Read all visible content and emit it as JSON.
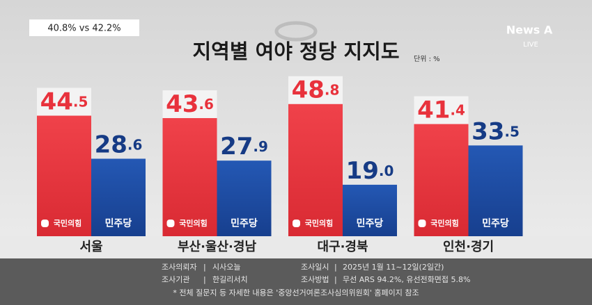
{
  "header": {
    "badge": "40.8% vs 42.2%",
    "logo": "News A",
    "live": "LIVE"
  },
  "chart_data": {
    "type": "bar",
    "title": "지역별 여야 정당 지지도",
    "unit": "단위 : %",
    "categories": [
      "서울",
      "부산·울산·경남",
      "대구·경북",
      "인천·경기"
    ],
    "series": [
      {
        "name": "국민의힘",
        "color": "#e8323c",
        "values": [
          44.5,
          43.6,
          48.8,
          41.4
        ],
        "value_labels": [
          "44.5",
          "43.6",
          "48.8",
          "41.4"
        ]
      },
      {
        "name": "민주당",
        "color": "#1c4ea6",
        "values": [
          28.6,
          27.9,
          19.0,
          33.5
        ],
        "value_labels": [
          "28.6",
          "27.9",
          "19.0",
          "33.5"
        ]
      }
    ]
  },
  "footer": {
    "rows": [
      [
        "조사의뢰자",
        "|",
        "시사오늘",
        "조사일시",
        "|",
        "2025년 1월 11~12일(2일간)"
      ],
      [
        "조사기관",
        "|",
        "한길리서치",
        "조사방법",
        "|",
        "무선 ARS 94.2%, 유선전화면접 5.8%"
      ]
    ],
    "note": "* 전체 질문지 등 자세한 내용은 '중앙선거여론조사심의위원회' 홈페이지 참조"
  }
}
